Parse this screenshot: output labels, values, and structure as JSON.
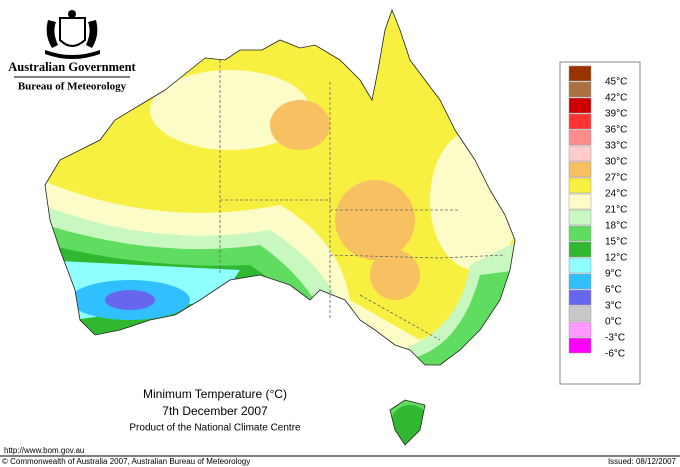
{
  "header": {
    "government": "Australian Government",
    "agency": "Bureau of Meteorology"
  },
  "map": {
    "title": "Minimum Temperature (°C)",
    "date": "7th December 2007",
    "product": "Product of the National Climate Centre"
  },
  "legend": [
    {
      "label": "45°C",
      "color": "#993300"
    },
    {
      "label": "42°C",
      "color": "#aa7040"
    },
    {
      "label": "39°C",
      "color": "#cc0000"
    },
    {
      "label": "36°C",
      "color": "#ff3333"
    },
    {
      "label": "33°C",
      "color": "#ff8c8c"
    },
    {
      "label": "30°C",
      "color": "#ffcccc"
    },
    {
      "label": "27°C",
      "color": "#f7c060"
    },
    {
      "label": "24°C",
      "color": "#f8f040"
    },
    {
      "label": "21°C",
      "color": "#fcfcc8"
    },
    {
      "label": "18°C",
      "color": "#c8f8c0"
    },
    {
      "label": "15°C",
      "color": "#60dd60"
    },
    {
      "label": "12°C",
      "color": "#30b830"
    },
    {
      "label": "9°C",
      "color": "#90ffff"
    },
    {
      "label": "6°C",
      "color": "#30c0ff"
    },
    {
      "label": "3°C",
      "color": "#6666ee"
    },
    {
      "label": "0°C",
      "color": "#c8c8c8"
    },
    {
      "label": "-3°C",
      "color": "#ff99ff"
    },
    {
      "label": "-6°C",
      "color": "#ff00ff"
    }
  ],
  "footer": {
    "url": "http://www.bom.gov.au",
    "copyright": "© Commonwealth of Australia 2007, Australian Bureau of Meteorology",
    "issued": "Issued: 08/12/2007"
  }
}
